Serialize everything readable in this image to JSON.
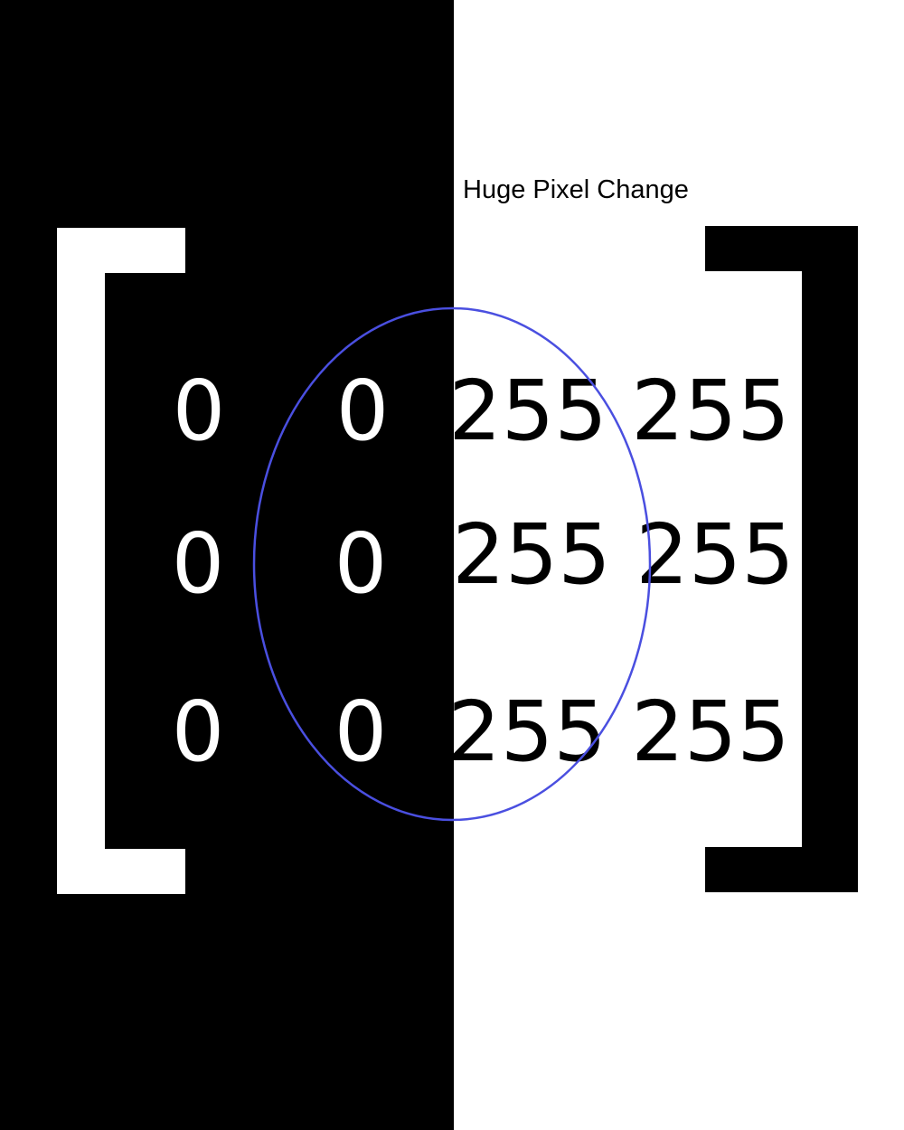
{
  "caption": "Huge Pixel Change",
  "matrix": {
    "rows": [
      [
        "0",
        "0",
        "255",
        "255"
      ],
      [
        "0",
        "0",
        "255",
        "255"
      ],
      [
        "0",
        "0",
        "255",
        "255"
      ]
    ]
  },
  "colors": {
    "dark": "#000000",
    "light": "#ffffff",
    "highlight": "#4a4fe0"
  }
}
